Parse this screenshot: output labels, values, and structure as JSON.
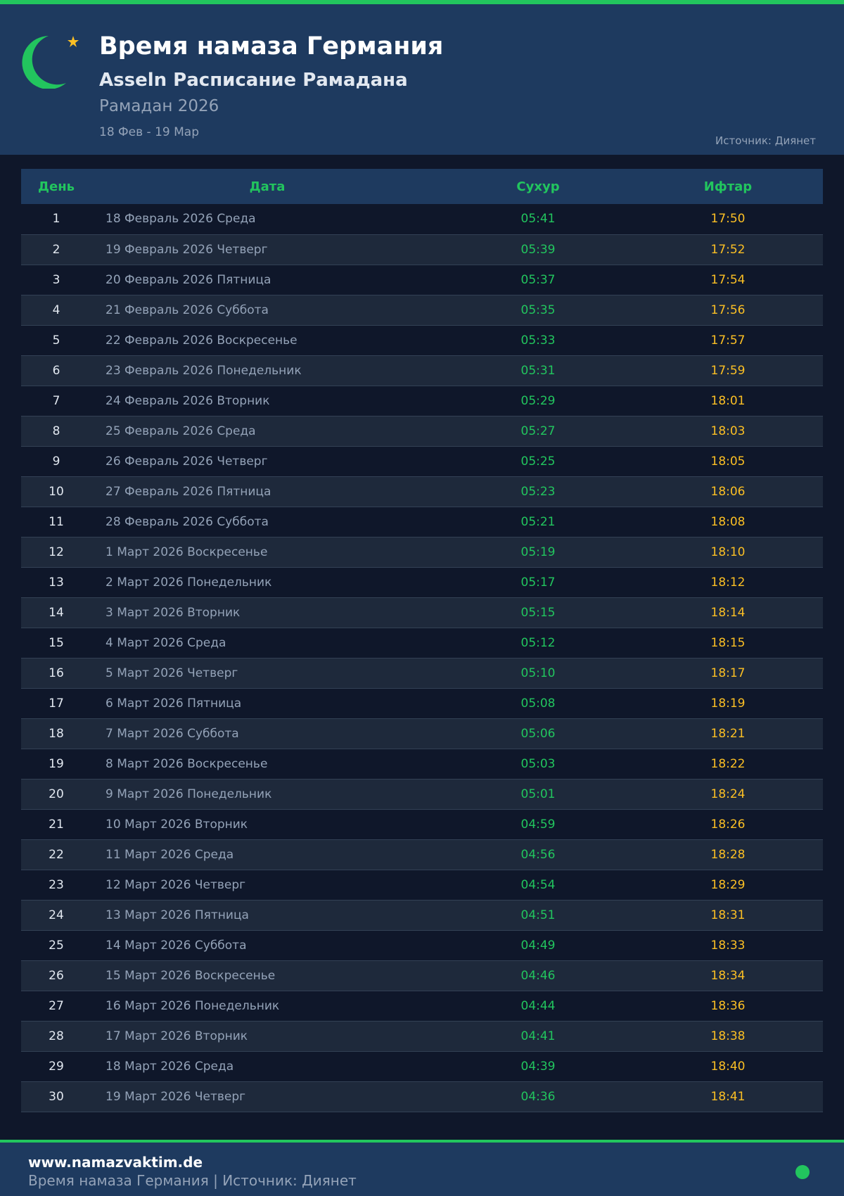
{
  "header": {
    "title": "Время намаза Германия",
    "subtitle": "Asseln Расписание Рамадана",
    "year": "Рамадан 2026",
    "range": "18 Фев - 19 Мар",
    "source": "Источник: Диянет"
  },
  "colors": {
    "accent": "#22c55e",
    "iftar": "#fbbf24",
    "header_bg": "#1e3a5f",
    "page_bg": "#0f172a"
  },
  "table": {
    "columns": [
      "День",
      "Дата",
      "Сухур",
      "Ифтар"
    ],
    "rows": [
      [
        "1",
        "18 Февраль 2026 Среда",
        "05:41",
        "17:50"
      ],
      [
        "2",
        "19 Февраль 2026 Четверг",
        "05:39",
        "17:52"
      ],
      [
        "3",
        "20 Февраль 2026 Пятница",
        "05:37",
        "17:54"
      ],
      [
        "4",
        "21 Февраль 2026 Суббота",
        "05:35",
        "17:56"
      ],
      [
        "5",
        "22 Февраль 2026 Воскресенье",
        "05:33",
        "17:57"
      ],
      [
        "6",
        "23 Февраль 2026 Понедельник",
        "05:31",
        "17:59"
      ],
      [
        "7",
        "24 Февраль 2026 Вторник",
        "05:29",
        "18:01"
      ],
      [
        "8",
        "25 Февраль 2026 Среда",
        "05:27",
        "18:03"
      ],
      [
        "9",
        "26 Февраль 2026 Четверг",
        "05:25",
        "18:05"
      ],
      [
        "10",
        "27 Февраль 2026 Пятница",
        "05:23",
        "18:06"
      ],
      [
        "11",
        "28 Февраль 2026 Суббота",
        "05:21",
        "18:08"
      ],
      [
        "12",
        "1 Март 2026 Воскресенье",
        "05:19",
        "18:10"
      ],
      [
        "13",
        "2 Март 2026 Понедельник",
        "05:17",
        "18:12"
      ],
      [
        "14",
        "3 Март 2026 Вторник",
        "05:15",
        "18:14"
      ],
      [
        "15",
        "4 Март 2026 Среда",
        "05:12",
        "18:15"
      ],
      [
        "16",
        "5 Март 2026 Четверг",
        "05:10",
        "18:17"
      ],
      [
        "17",
        "6 Март 2026 Пятница",
        "05:08",
        "18:19"
      ],
      [
        "18",
        "7 Март 2026 Суббота",
        "05:06",
        "18:21"
      ],
      [
        "19",
        "8 Март 2026 Воскресенье",
        "05:03",
        "18:22"
      ],
      [
        "20",
        "9 Март 2026 Понедельник",
        "05:01",
        "18:24"
      ],
      [
        "21",
        "10 Март 2026 Вторник",
        "04:59",
        "18:26"
      ],
      [
        "22",
        "11 Март 2026 Среда",
        "04:56",
        "18:28"
      ],
      [
        "23",
        "12 Март 2026 Четверг",
        "04:54",
        "18:29"
      ],
      [
        "24",
        "13 Март 2026 Пятница",
        "04:51",
        "18:31"
      ],
      [
        "25",
        "14 Март 2026 Суббота",
        "04:49",
        "18:33"
      ],
      [
        "26",
        "15 Март 2026 Воскресенье",
        "04:46",
        "18:34"
      ],
      [
        "27",
        "16 Март 2026 Понедельник",
        "04:44",
        "18:36"
      ],
      [
        "28",
        "17 Март 2026 Вторник",
        "04:41",
        "18:38"
      ],
      [
        "29",
        "18 Март 2026 Среда",
        "04:39",
        "18:40"
      ],
      [
        "30",
        "19 Март 2026 Четверг",
        "04:36",
        "18:41"
      ]
    ]
  },
  "footer": {
    "site": "www.namazvaktim.de",
    "text": "Время намаза Германия | Источник: Диянет"
  }
}
